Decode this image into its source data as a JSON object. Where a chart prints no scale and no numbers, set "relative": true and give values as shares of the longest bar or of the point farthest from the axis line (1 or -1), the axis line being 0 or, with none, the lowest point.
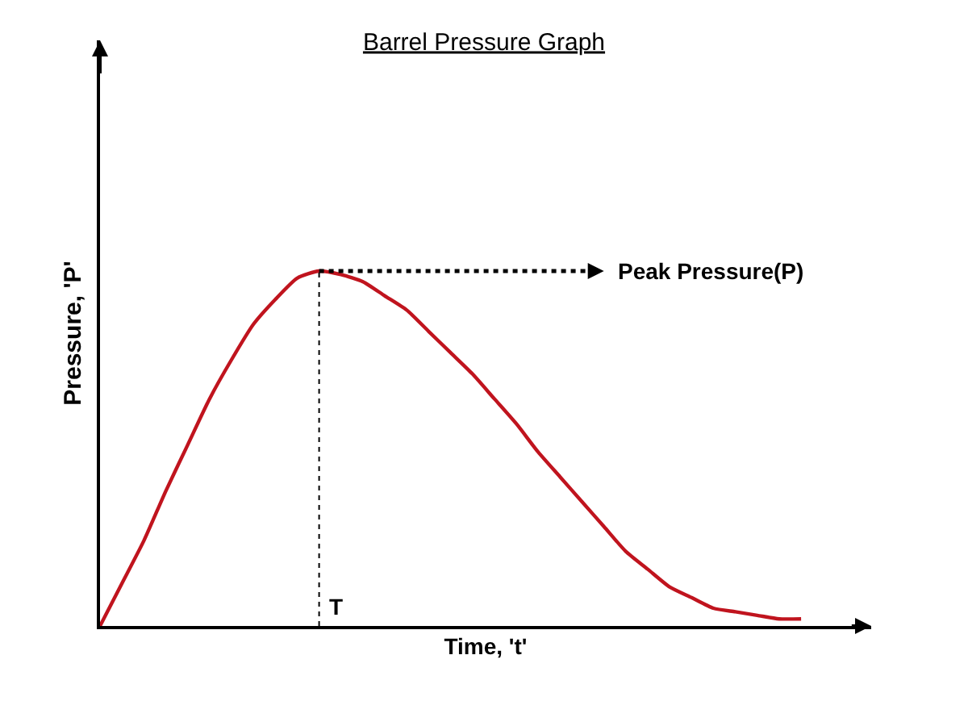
{
  "chart_data": {
    "type": "line",
    "title": "Barrel Pressure Graph",
    "xlabel": "Time, 't'",
    "ylabel": "Pressure, 'P'",
    "relative": true,
    "categories": [
      null,
      null,
      null,
      null,
      null,
      null,
      null,
      null,
      null,
      null,
      null,
      null,
      null,
      null,
      null,
      null,
      null,
      null,
      null,
      null,
      null,
      null,
      null,
      null,
      null,
      null,
      null,
      null,
      null,
      null,
      null,
      null,
      null
    ],
    "series": [
      {
        "color": "#c0141e",
        "values": [
          0,
          0.12,
          0.24,
          0.38,
          0.51,
          0.64,
          0.75,
          0.85,
          0.92,
          0.98,
          1,
          0.99,
          0.97,
          0.93,
          0.89,
          0.83,
          0.77,
          0.71,
          0.64,
          0.57,
          0.49,
          0.42,
          0.35,
          0.28,
          0.21,
          0.16,
          0.11,
          0.08,
          0.05,
          0.04,
          0.03,
          0.02,
          0.02
        ]
      }
    ],
    "annotations": [
      "Peak Pressure(P)",
      "T"
    ],
    "legend": false,
    "marker": "none",
    "line_style": "solid"
  }
}
